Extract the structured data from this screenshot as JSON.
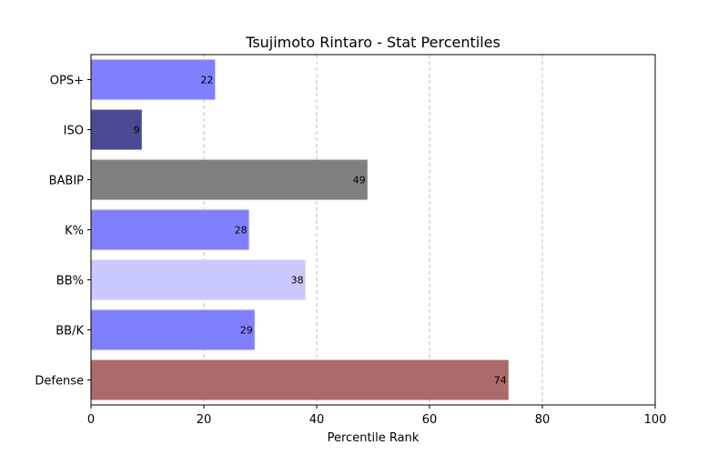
{
  "chart_data": {
    "type": "bar",
    "orientation": "horizontal",
    "title": "Tsujimoto Rintaro - Stat Percentiles",
    "xlabel": "Percentile Rank",
    "ylabel": "",
    "xlim": [
      0,
      100
    ],
    "xticks": [
      0,
      20,
      40,
      60,
      80,
      100
    ],
    "grid": "x-dashed",
    "categories": [
      "OPS+",
      "ISO",
      "BABIP",
      "K%",
      "BB%",
      "BB/K",
      "Defense"
    ],
    "values": [
      22,
      9,
      49,
      28,
      38,
      29,
      74
    ],
    "colors": [
      "#8080ff",
      "#4a4a94",
      "#808080",
      "#8080ff",
      "#c9c9ff",
      "#8080ff",
      "#ab6b6a"
    ]
  }
}
